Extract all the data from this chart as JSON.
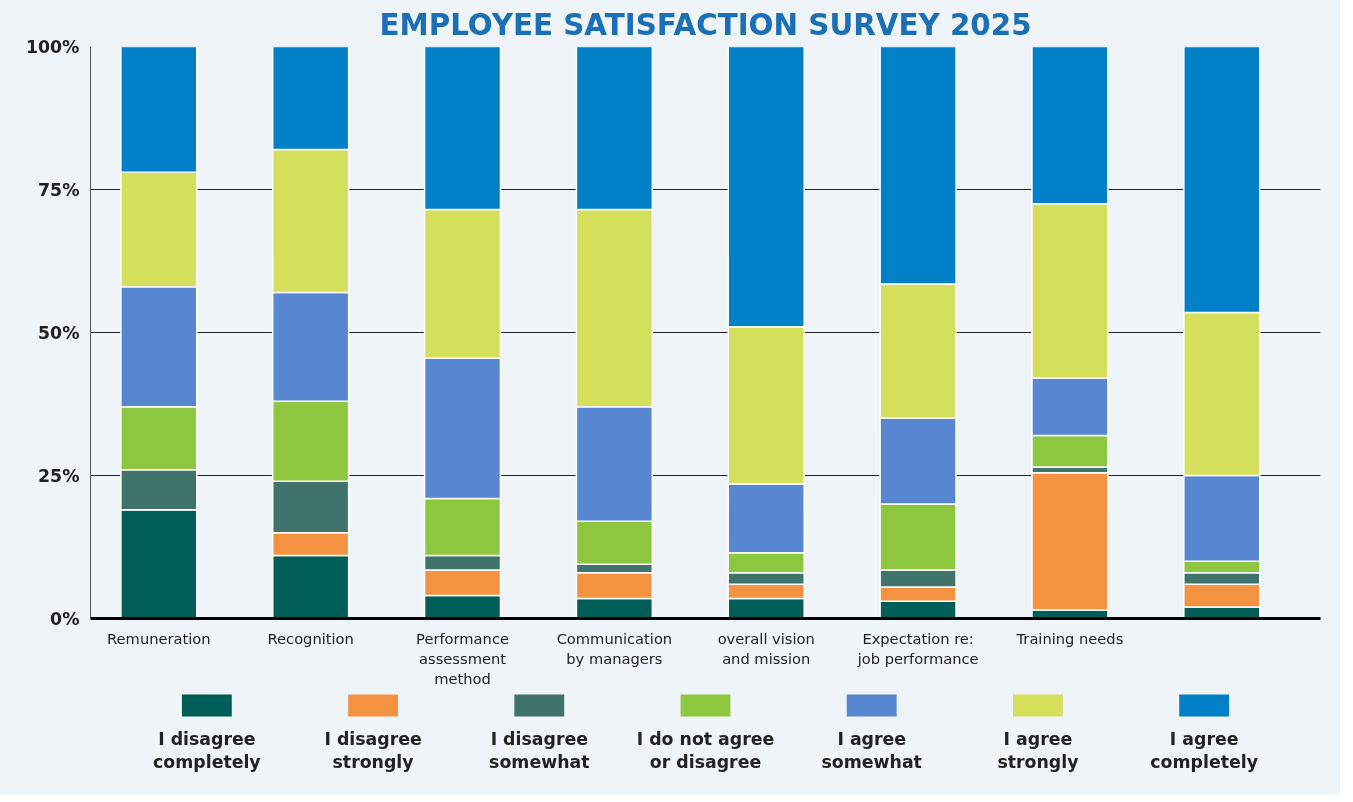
{
  "chart_data": {
    "type": "bar",
    "stacked": true,
    "title": "EMPLOYEE SATISFACTION SURVEY 2025",
    "categories": [
      "Remuneration",
      "Recognition",
      "Performance assessment method",
      "Communication by managers",
      "overall vision and mission",
      "Expectation re: job performance",
      "Training needs",
      null
    ],
    "series": [
      {
        "name": "I disagree completely",
        "color": "#005e58",
        "values": [
          19,
          11,
          4,
          3.5,
          3.5,
          3,
          1.5,
          2
        ]
      },
      {
        "name": "I disagree strongly",
        "color": "#f39240",
        "values": [
          0,
          4,
          4.5,
          4.5,
          2.5,
          2.5,
          24,
          4
        ]
      },
      {
        "name": "I disagree somewhat",
        "color": "#41736d",
        "values": [
          7,
          9,
          2.5,
          1.5,
          2,
          3,
          1,
          2
        ]
      },
      {
        "name": "I do not agree or disagree",
        "color": "#8dc63f",
        "values": [
          11,
          14,
          10,
          7.5,
          3.5,
          11.5,
          5.5,
          2
        ]
      },
      {
        "name": "I agree somewhat",
        "color": "#5787d1",
        "values": [
          21,
          19,
          24.5,
          20,
          12,
          15,
          10,
          15
        ]
      },
      {
        "name": "I agree strongly",
        "color": "#d4e05b",
        "values": [
          20,
          25,
          26,
          34.5,
          27.5,
          23.5,
          30.5,
          28.5
        ]
      },
      {
        "name": "I agree completely",
        "color": "#0080c6",
        "values": [
          22,
          18,
          28.5,
          28.5,
          49,
          41.5,
          27.5,
          46.5
        ]
      }
    ],
    "ylim": [
      0,
      100
    ],
    "yticks": [
      {
        "value": 0,
        "label": "0%"
      },
      {
        "value": 25,
        "label": "25%"
      },
      {
        "value": 50,
        "label": "50%"
      },
      {
        "value": 75,
        "label": "75%"
      },
      {
        "value": 100,
        "label": "100%"
      }
    ],
    "grid": "y",
    "legend": "bottom"
  }
}
